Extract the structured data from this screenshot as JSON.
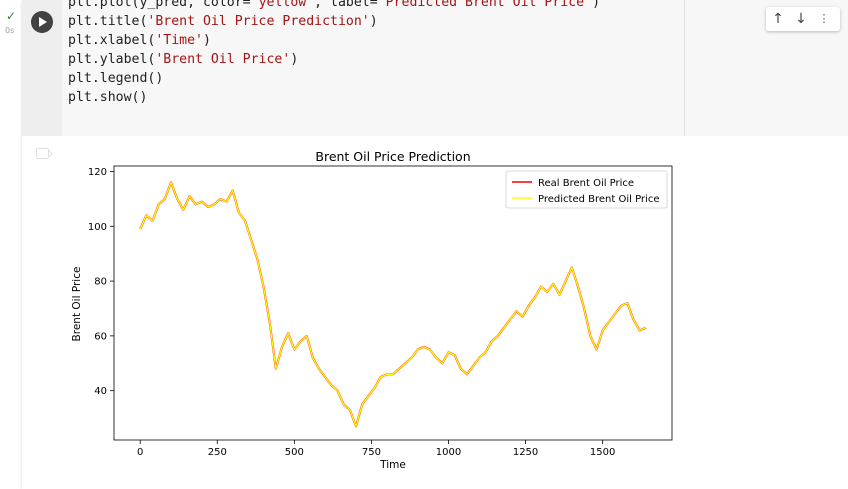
{
  "cell": {
    "status_icon": "check-icon",
    "exec_time": "0s",
    "run_icon": "play-icon",
    "code_lines": [
      [
        {
          "t": "plt.plot(y_pred, color="
        },
        {
          "t": "'yellow'",
          "s": 1
        },
        {
          "t": ", label="
        },
        {
          "t": "'Predicted Brent Oil Price'",
          "s": 1
        },
        {
          "t": ")"
        }
      ],
      [
        {
          "t": "plt.title("
        },
        {
          "t": "'Brent Oil Price Prediction'",
          "s": 1
        },
        {
          "t": ")"
        }
      ],
      [
        {
          "t": "plt.xlabel("
        },
        {
          "t": "'Time'",
          "s": 1
        },
        {
          "t": ")"
        }
      ],
      [
        {
          "t": "plt.ylabel("
        },
        {
          "t": "'Brent Oil Price'",
          "s": 1
        },
        {
          "t": ")"
        }
      ],
      [
        {
          "t": "plt.legend()"
        }
      ],
      [
        {
          "t": "plt.show()"
        }
      ]
    ],
    "toolbar": {
      "up_icon": "arrow-up-icon",
      "down_icon": "arrow-down-icon",
      "more_icon": "more-icon",
      "up_glyph": "↑",
      "down_glyph": "↓"
    },
    "output_icon": "output-icon"
  },
  "chart_data": {
    "type": "line",
    "title": "Brent Oil Price Prediction",
    "xlabel": "Time",
    "ylabel": "Brent Oil Price",
    "xlim": [
      -85,
      1725
    ],
    "ylim": [
      22,
      122
    ],
    "xticks": [
      0,
      250,
      500,
      750,
      1000,
      1250,
      1500
    ],
    "yticks": [
      40,
      60,
      80,
      100,
      120
    ],
    "grid": false,
    "legend_position": "upper right",
    "series": [
      {
        "name": "Real Brent Oil Price",
        "color": "#ff0000"
      },
      {
        "name": "Predicted Brent Oil Price",
        "color": "#ffff00"
      }
    ],
    "x": [
      0,
      20,
      40,
      60,
      80,
      100,
      120,
      140,
      160,
      180,
      200,
      220,
      240,
      260,
      280,
      300,
      320,
      340,
      360,
      380,
      400,
      420,
      440,
      460,
      480,
      500,
      520,
      540,
      560,
      580,
      600,
      620,
      640,
      660,
      680,
      700,
      720,
      740,
      760,
      780,
      800,
      820,
      840,
      860,
      880,
      900,
      920,
      940,
      960,
      980,
      1000,
      1020,
      1040,
      1060,
      1080,
      1100,
      1120,
      1140,
      1160,
      1180,
      1200,
      1220,
      1240,
      1260,
      1280,
      1300,
      1320,
      1340,
      1360,
      1380,
      1400,
      1420,
      1440,
      1460,
      1480,
      1500,
      1520,
      1540,
      1560,
      1580,
      1600,
      1620,
      1640
    ],
    "values": [
      99,
      104,
      102,
      108,
      110,
      116,
      110,
      106,
      111,
      108,
      109,
      107,
      108,
      110,
      109,
      113,
      105,
      102,
      95,
      88,
      78,
      65,
      48,
      56,
      61,
      55,
      58,
      60,
      52,
      48,
      45,
      42,
      40,
      35,
      33,
      27,
      35,
      38,
      41,
      45,
      46,
      46,
      48,
      50,
      52,
      55,
      56,
      55,
      52,
      50,
      54,
      53,
      48,
      46,
      49,
      52,
      54,
      58,
      60,
      63,
      66,
      69,
      67,
      71,
      74,
      78,
      76,
      79,
      75,
      80,
      85,
      78,
      70,
      60,
      55,
      62,
      65,
      68,
      71,
      72,
      66,
      62,
      63
    ]
  }
}
